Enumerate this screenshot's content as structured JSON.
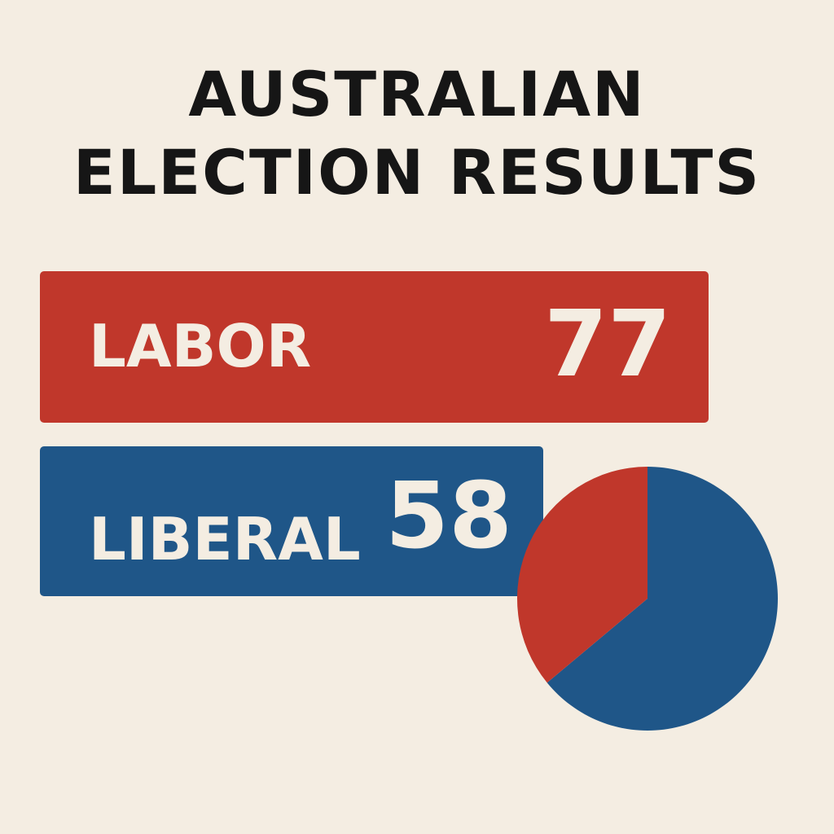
{
  "chart_data": [
    {
      "type": "bar",
      "title": [
        "AUSTRALIAN",
        "ELECTION RESULTS"
      ],
      "categories": [
        "LABOR",
        "LIBERAL"
      ],
      "values": [
        77,
        58
      ],
      "colors": [
        "#c0372b",
        "#1f5688"
      ],
      "value_labels": [
        "77",
        "58"
      ]
    },
    {
      "type": "pie",
      "categories": [
        "LABOR",
        "LIBERAL"
      ],
      "values": [
        36,
        64
      ],
      "colors": [
        "#c0372b",
        "#1f5688"
      ]
    }
  ]
}
